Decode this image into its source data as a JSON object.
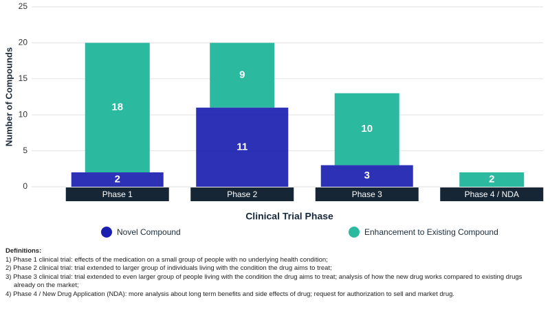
{
  "chart_data": {
    "type": "bar",
    "stacked": true,
    "x_label": "Clinical Trial Phase",
    "y_label": "Number of Compounds",
    "categories": [
      "Phase 1",
      "Phase 2",
      "Phase 3",
      "Phase 4 / NDA"
    ],
    "series": [
      {
        "name": "Novel Compound",
        "color": "#1a1fb0",
        "values": [
          2,
          11,
          3,
          null
        ]
      },
      {
        "name": "Enhancement to Existing Compound",
        "color": "#2bb9a0",
        "values": [
          18,
          9,
          10,
          2
        ]
      }
    ],
    "ylim": [
      0,
      25
    ],
    "yticks": [
      0,
      5,
      10,
      15,
      20,
      25
    ],
    "grid": true
  },
  "notes": {
    "title": "Definitions:",
    "items": [
      "1) Phase 1 clinical trial: effects of the medication on a small group of people with no underlying health condition;",
      "2) Phase 2 clinical trial: trial extended to larger group of individuals living with the condition the drug aims to treat;",
      "3) Phase 3 clinical trial: trial extended to even larger group of people living with the condition the drug aims to treat; analysis of how the new drug works compared to existing drugs already on the market;",
      "4) Phase 4 / New Drug Application (NDA): more analysis about long term benefits and side effects of drug; request for authorization to sell and market drug."
    ]
  }
}
